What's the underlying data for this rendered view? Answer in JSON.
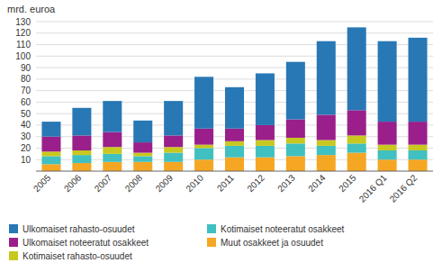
{
  "chart_data": {
    "type": "bar",
    "stacked": true,
    "ylabel": "mrd. euroa",
    "categories": [
      "2005",
      "2006",
      "2007",
      "2008",
      "2009",
      "2010",
      "2011",
      "2012",
      "2013",
      "2014",
      "2015",
      "2016 Q1",
      "2016 Q2"
    ],
    "series": [
      {
        "name": "Muut osakkeet ja osuudet",
        "color": "#f5a623",
        "values": [
          6,
          7,
          8,
          8,
          8,
          10,
          12,
          12,
          13,
          14,
          16,
          10,
          10
        ]
      },
      {
        "name": "Kotimaiset noteeratut osakkeet",
        "color": "#40c0c0",
        "values": [
          7,
          7,
          7,
          5,
          8,
          10,
          10,
          10,
          11,
          8,
          8,
          8,
          8
        ]
      },
      {
        "name": "Kotimaiset rahasto-osuudet",
        "color": "#c8c820",
        "values": [
          4,
          4,
          6,
          3,
          5,
          3,
          4,
          5,
          5,
          5,
          7,
          5,
          5
        ]
      },
      {
        "name": "Ulkomaiset noteeratut osakkeet",
        "color": "#9a1f8a",
        "values": [
          13,
          13,
          13,
          9,
          10,
          14,
          11,
          13,
          16,
          22,
          22,
          20,
          20
        ]
      },
      {
        "name": "Ulkomaiset rahasto-osuudet",
        "color": "#2878b5",
        "values": [
          13,
          24,
          27,
          19,
          30,
          45,
          36,
          45,
          50,
          64,
          72,
          70,
          73
        ]
      }
    ],
    "ylim": [
      0,
      130
    ],
    "yticks": [
      10,
      20,
      30,
      40,
      50,
      60,
      70,
      80,
      90,
      100,
      110,
      120,
      130
    ],
    "grid": true,
    "legend": "bottom"
  }
}
